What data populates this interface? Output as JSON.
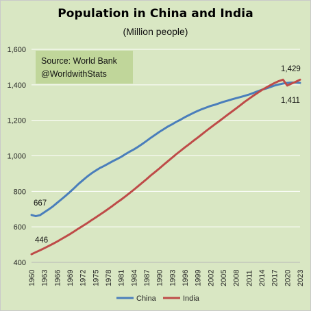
{
  "chart_data": {
    "type": "line",
    "title": "Population in China and India",
    "subtitle": "(Million people)",
    "source_lines": [
      "Source: World Bank",
      "@WorldwithStats"
    ],
    "ylim": [
      400,
      1600
    ],
    "yticks": [
      400,
      600,
      800,
      1000,
      1200,
      1400,
      1600
    ],
    "ytick_labels": [
      "400",
      "600",
      "800",
      "1,000",
      "1,200",
      "1,400",
      "1,600"
    ],
    "xlim": [
      1960,
      2023
    ],
    "xticks": [
      1960,
      1963,
      1966,
      1969,
      1972,
      1975,
      1978,
      1981,
      1984,
      1987,
      1990,
      1993,
      1996,
      1999,
      2002,
      2005,
      2008,
      2011,
      2014,
      2017,
      2020,
      2023
    ],
    "grid": true,
    "legend_position": "bottom",
    "x": [
      1960,
      1961,
      1962,
      1963,
      1964,
      1965,
      1966,
      1967,
      1968,
      1969,
      1970,
      1971,
      1972,
      1973,
      1974,
      1975,
      1976,
      1977,
      1978,
      1979,
      1980,
      1981,
      1982,
      1983,
      1984,
      1985,
      1986,
      1987,
      1988,
      1989,
      1990,
      1991,
      1992,
      1993,
      1994,
      1995,
      1996,
      1997,
      1998,
      1999,
      2000,
      2001,
      2002,
      2003,
      2004,
      2005,
      2006,
      2007,
      2008,
      2009,
      2010,
      2011,
      2012,
      2013,
      2014,
      2015,
      2016,
      2017,
      2018,
      2019,
      2020,
      2021,
      2022,
      2023
    ],
    "series": [
      {
        "name": "China",
        "color": "#4a7ebb",
        "values": [
          667,
          660,
          666,
          682,
          698,
          715,
          735,
          755,
          775,
          796,
          818,
          841,
          862,
          882,
          900,
          916,
          931,
          943,
          956,
          969,
          981,
          994,
          1009,
          1023,
          1036,
          1051,
          1067,
          1084,
          1102,
          1118,
          1135,
          1150,
          1165,
          1178,
          1192,
          1204,
          1218,
          1230,
          1242,
          1253,
          1263,
          1272,
          1281,
          1288,
          1296,
          1304,
          1311,
          1318,
          1325,
          1331,
          1338,
          1345,
          1354,
          1363,
          1372,
          1379,
          1387,
          1396,
          1402,
          1407,
          1411,
          1413,
          1413,
          1411
        ],
        "start_label": "667",
        "end_label": "1,411"
      },
      {
        "name": "India",
        "color": "#be4b48",
        "values": [
          446,
          457,
          468,
          480,
          492,
          504,
          517,
          531,
          545,
          559,
          574,
          590,
          605,
          620,
          636,
          652,
          668,
          684,
          701,
          718,
          736,
          753,
          771,
          790,
          809,
          829,
          849,
          869,
          890,
          909,
          929,
          950,
          970,
          990,
          1010,
          1029,
          1048,
          1066,
          1085,
          1103,
          1122,
          1141,
          1159,
          1177,
          1195,
          1213,
          1231,
          1249,
          1267,
          1285,
          1304,
          1321,
          1338,
          1354,
          1370,
          1384,
          1397,
          1410,
          1421,
          1429,
          1396,
          1407,
          1417,
          1429
        ],
        "start_label": "446",
        "end_label": "1,429"
      }
    ]
  }
}
